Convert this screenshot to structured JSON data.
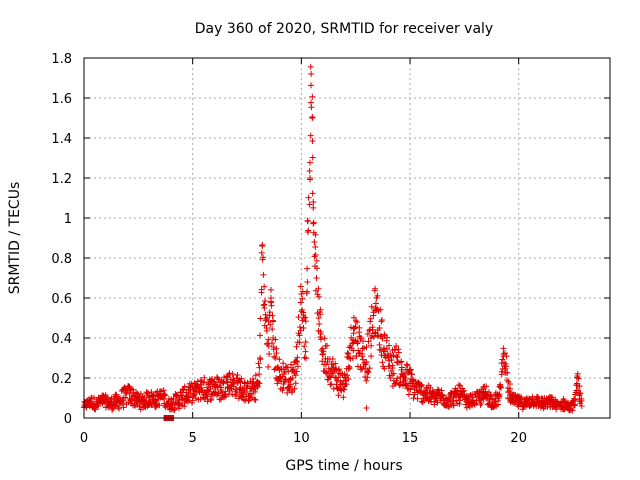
{
  "chart_data": {
    "type": "scatter",
    "title": "Day 360 of 2020, SRMTID for receiver valy",
    "xlabel": "GPS time / hours",
    "ylabel": "SRMTID / TECUs",
    "xlim": [
      0,
      24.2
    ],
    "ylim": [
      0,
      1.8
    ],
    "xticks": [
      0,
      5,
      10,
      15,
      20
    ],
    "xtick_labels": [
      "0",
      "5",
      "10",
      "15",
      "20"
    ],
    "yticks": [
      0,
      0.2,
      0.4,
      0.6,
      0.8,
      1,
      1.2,
      1.4,
      1.6,
      1.8
    ],
    "ytick_labels": [
      "0",
      "0.2",
      "0.4",
      "0.6",
      "0.8",
      "1",
      "1.2",
      "1.4",
      "1.6",
      "1.8"
    ],
    "grid": true,
    "marker": "+",
    "colors": {
      "series": "#e00000",
      "grid": "#aaaaaa",
      "axis": "#000000"
    },
    "series": [
      {
        "name": "SRMTID",
        "x": [
          0.0,
          0.3,
          0.6,
          0.9,
          1.2,
          1.5,
          1.8,
          2.1,
          2.4,
          2.7,
          3.0,
          3.3,
          3.6,
          3.9,
          4.2,
          4.5,
          4.8,
          5.1,
          5.4,
          5.7,
          6.0,
          6.3,
          6.6,
          6.9,
          7.2,
          7.5,
          7.8,
          8.0,
          8.1,
          8.2,
          8.3,
          8.4,
          8.5,
          8.6,
          8.7,
          8.8,
          8.9,
          9.0,
          9.2,
          9.4,
          9.6,
          9.8,
          10.0,
          10.1,
          10.2,
          10.3,
          10.4,
          10.45,
          10.5,
          10.55,
          10.6,
          10.7,
          10.8,
          10.9,
          11.0,
          11.2,
          11.4,
          11.6,
          11.8,
          12.0,
          12.2,
          12.4,
          12.6,
          12.8,
          13.0,
          13.2,
          13.4,
          13.6,
          13.8,
          14.0,
          14.2,
          14.4,
          14.6,
          14.8,
          15.0,
          15.2,
          15.5,
          15.8,
          16.1,
          16.4,
          16.7,
          17.0,
          17.3,
          17.6,
          17.9,
          18.2,
          18.5,
          18.8,
          19.1,
          19.3,
          19.4,
          19.5,
          19.7,
          20.0,
          20.3,
          20.6,
          20.9,
          21.2,
          21.5,
          21.8,
          22.1,
          22.4,
          22.6,
          22.7,
          22.8,
          22.9
        ],
        "y": [
          0.06,
          0.08,
          0.07,
          0.09,
          0.07,
          0.08,
          0.1,
          0.12,
          0.09,
          0.08,
          0.1,
          0.09,
          0.11,
          0.07,
          0.08,
          0.1,
          0.12,
          0.13,
          0.15,
          0.14,
          0.16,
          0.14,
          0.18,
          0.17,
          0.15,
          0.13,
          0.14,
          0.16,
          0.3,
          0.86,
          0.55,
          0.45,
          0.36,
          0.6,
          0.4,
          0.3,
          0.25,
          0.2,
          0.22,
          0.18,
          0.2,
          0.28,
          0.62,
          0.45,
          0.38,
          0.93,
          1.2,
          1.72,
          1.5,
          1.08,
          0.88,
          0.7,
          0.5,
          0.42,
          0.32,
          0.28,
          0.24,
          0.2,
          0.18,
          0.16,
          0.3,
          0.45,
          0.38,
          0.32,
          0.28,
          0.4,
          0.55,
          0.45,
          0.35,
          0.3,
          0.25,
          0.28,
          0.22,
          0.2,
          0.18,
          0.15,
          0.13,
          0.12,
          0.1,
          0.11,
          0.09,
          0.1,
          0.12,
          0.08,
          0.09,
          0.1,
          0.12,
          0.08,
          0.1,
          0.32,
          0.27,
          0.15,
          0.09,
          0.08,
          0.07,
          0.09,
          0.08,
          0.07,
          0.08,
          0.06,
          0.07,
          0.05,
          0.09,
          0.21,
          0.12,
          0.06
        ],
        "spread": [
          0.02,
          0.03,
          0.03,
          0.03,
          0.03,
          0.04,
          0.05,
          0.05,
          0.04,
          0.04,
          0.04,
          0.04,
          0.04,
          0.03,
          0.04,
          0.05,
          0.05,
          0.05,
          0.06,
          0.06,
          0.06,
          0.06,
          0.06,
          0.06,
          0.06,
          0.05,
          0.06,
          0.07,
          0.1,
          0.08,
          0.12,
          0.12,
          0.12,
          0.1,
          0.12,
          0.1,
          0.1,
          0.08,
          0.08,
          0.08,
          0.08,
          0.1,
          0.1,
          0.12,
          0.12,
          0.1,
          0.06,
          0.04,
          0.08,
          0.1,
          0.1,
          0.1,
          0.12,
          0.12,
          0.1,
          0.1,
          0.08,
          0.08,
          0.08,
          0.07,
          0.1,
          0.12,
          0.12,
          0.1,
          0.1,
          0.12,
          0.12,
          0.12,
          0.1,
          0.1,
          0.1,
          0.1,
          0.08,
          0.08,
          0.08,
          0.06,
          0.05,
          0.05,
          0.04,
          0.04,
          0.04,
          0.04,
          0.05,
          0.03,
          0.03,
          0.04,
          0.05,
          0.03,
          0.04,
          0.05,
          0.06,
          0.06,
          0.03,
          0.03,
          0.03,
          0.03,
          0.03,
          0.03,
          0.03,
          0.02,
          0.03,
          0.02,
          0.03,
          0.06,
          0.05,
          0.02
        ]
      }
    ],
    "outliers": [
      {
        "x": 3.8,
        "y": 0.0,
        "marker": "square"
      },
      {
        "x": 4.0,
        "y": 0.0,
        "marker": "square"
      },
      {
        "x": 13.0,
        "y": 0.05,
        "marker": "+"
      }
    ]
  }
}
